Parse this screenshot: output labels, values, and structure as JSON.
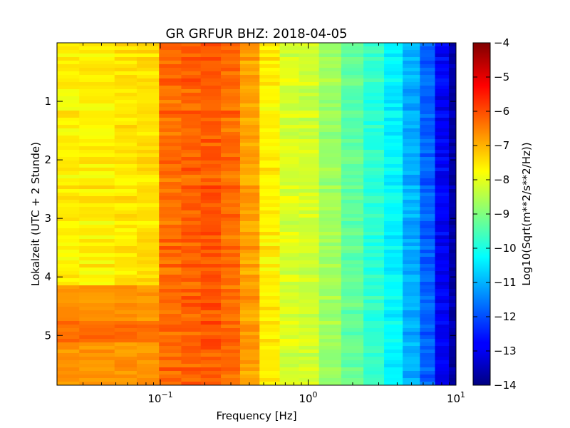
{
  "chart_data": {
    "type": "heatmap",
    "title": "GR GRFUR BHZ: 2018-04-05",
    "xlabel": "Frequency [Hz]",
    "ylabel": "Lokalzeit (UTC + 2 Stunde)",
    "colorbar_label": "Log10(Sqrt(m**2/s**2/Hz))",
    "x_scale": "log",
    "xlim": [
      0.02,
      10
    ],
    "ylim": [
      5.85,
      0
    ],
    "x_ticks": [
      {
        "value": 0.1,
        "base": "10",
        "exp": "−1"
      },
      {
        "value": 1,
        "base": "10",
        "exp": "0"
      },
      {
        "value": 10,
        "base": "10",
        "exp": "1"
      }
    ],
    "y_ticks": [
      {
        "value": 1,
        "label": "1"
      },
      {
        "value": 2,
        "label": "2"
      },
      {
        "value": 3,
        "label": "3"
      },
      {
        "value": 4,
        "label": "4"
      },
      {
        "value": 5,
        "label": "5"
      }
    ],
    "colorbar_range": [
      -14,
      -4
    ],
    "colorbar_ticks": [
      -4,
      -5,
      -6,
      -7,
      -8,
      -9,
      -10,
      -11,
      -12,
      -13,
      -14
    ],
    "colorbar_tick_labels": [
      "−4",
      "−5",
      "−6",
      "−7",
      "−8",
      "−9",
      "−10",
      "−11",
      "−12",
      "−13",
      "−14"
    ],
    "colormap": "jet",
    "frequency_bins_hz": [
      0.02,
      0.04,
      0.06,
      0.08,
      0.12,
      0.16,
      0.22,
      0.3,
      0.4,
      0.55,
      0.75,
      1.0,
      1.4,
      2.0,
      2.8,
      3.8,
      5.0,
      6.5,
      8.0,
      10.0
    ],
    "mean_psd_log10": [
      -7.6,
      -7.6,
      -7.5,
      -7.4,
      -6.3,
      -6.2,
      -6.1,
      -6.3,
      -6.8,
      -7.6,
      -8.1,
      -8.2,
      -8.7,
      -9.3,
      -9.8,
      -10.3,
      -11.0,
      -11.8,
      -12.8,
      -13.6
    ],
    "events": [
      {
        "time_start": 4.15,
        "time_end": 5.85,
        "freq_max_hz": 0.12,
        "psd_log10": -6.7
      },
      {
        "time_start": 4.75,
        "time_end": 5.1,
        "freq_max_hz": 0.08,
        "psd_log10": -6.3
      }
    ],
    "colors": {
      "jet_stops": [
        "#000080",
        "#0000ff",
        "#00ffff",
        "#ffff00",
        "#ff0000",
        "#800000"
      ]
    }
  }
}
